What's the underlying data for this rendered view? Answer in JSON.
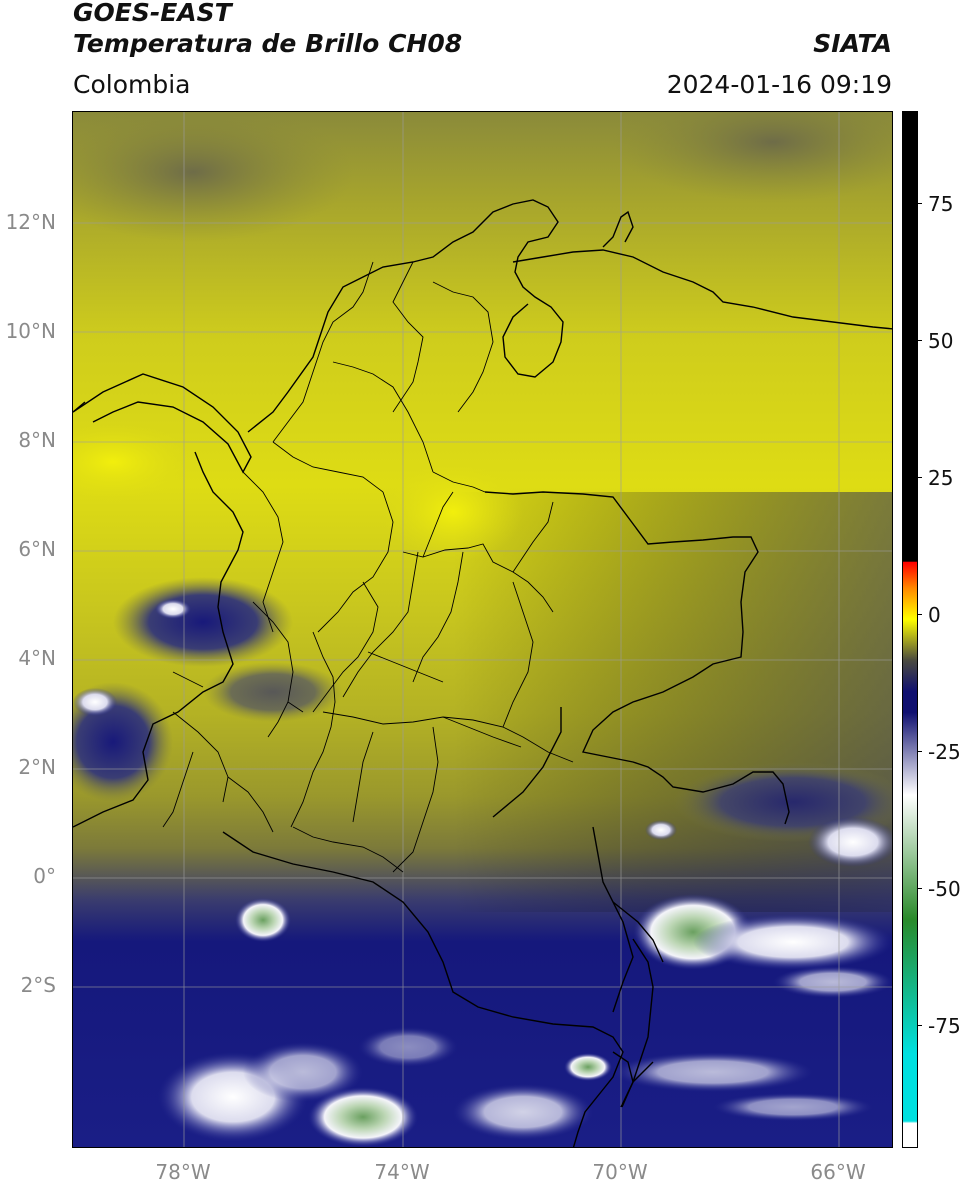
{
  "header": {
    "title_line1": "GOES-EAST",
    "title_line2": "Temperatura de Brillo CH08",
    "region": "Colombia",
    "brand": "SIATA",
    "timestamp": "2024-01-16 09:19"
  },
  "map": {
    "lat_labels": [
      "12°N",
      "10°N",
      "8°N",
      "6°N",
      "4°N",
      "2°N",
      "0°",
      "2°S"
    ],
    "lon_labels": [
      "78°W",
      "74°W",
      "70°W",
      "66°W"
    ],
    "colors": {
      "warm_yellow": "#e6e612",
      "olive": "#b8b520",
      "dark_olive": "#7a7a30",
      "gray": "#6b6b55",
      "navy": "#161a7c",
      "white_cloud": "#f0f0f8",
      "green_cloud": "#6aa060",
      "border_line": "#000000",
      "grid_line": "#a0a0a0"
    }
  },
  "colorbar": {
    "ticks": [
      "75",
      "50",
      "25",
      "0",
      "-25",
      "-50",
      "-75"
    ],
    "colors": [
      "#ffffff",
      "#00e0e0",
      "#2a8a2a",
      "#ffffff",
      "#101070",
      "#ffff00",
      "#ff8800",
      "#ff0000",
      "#000000"
    ]
  }
}
